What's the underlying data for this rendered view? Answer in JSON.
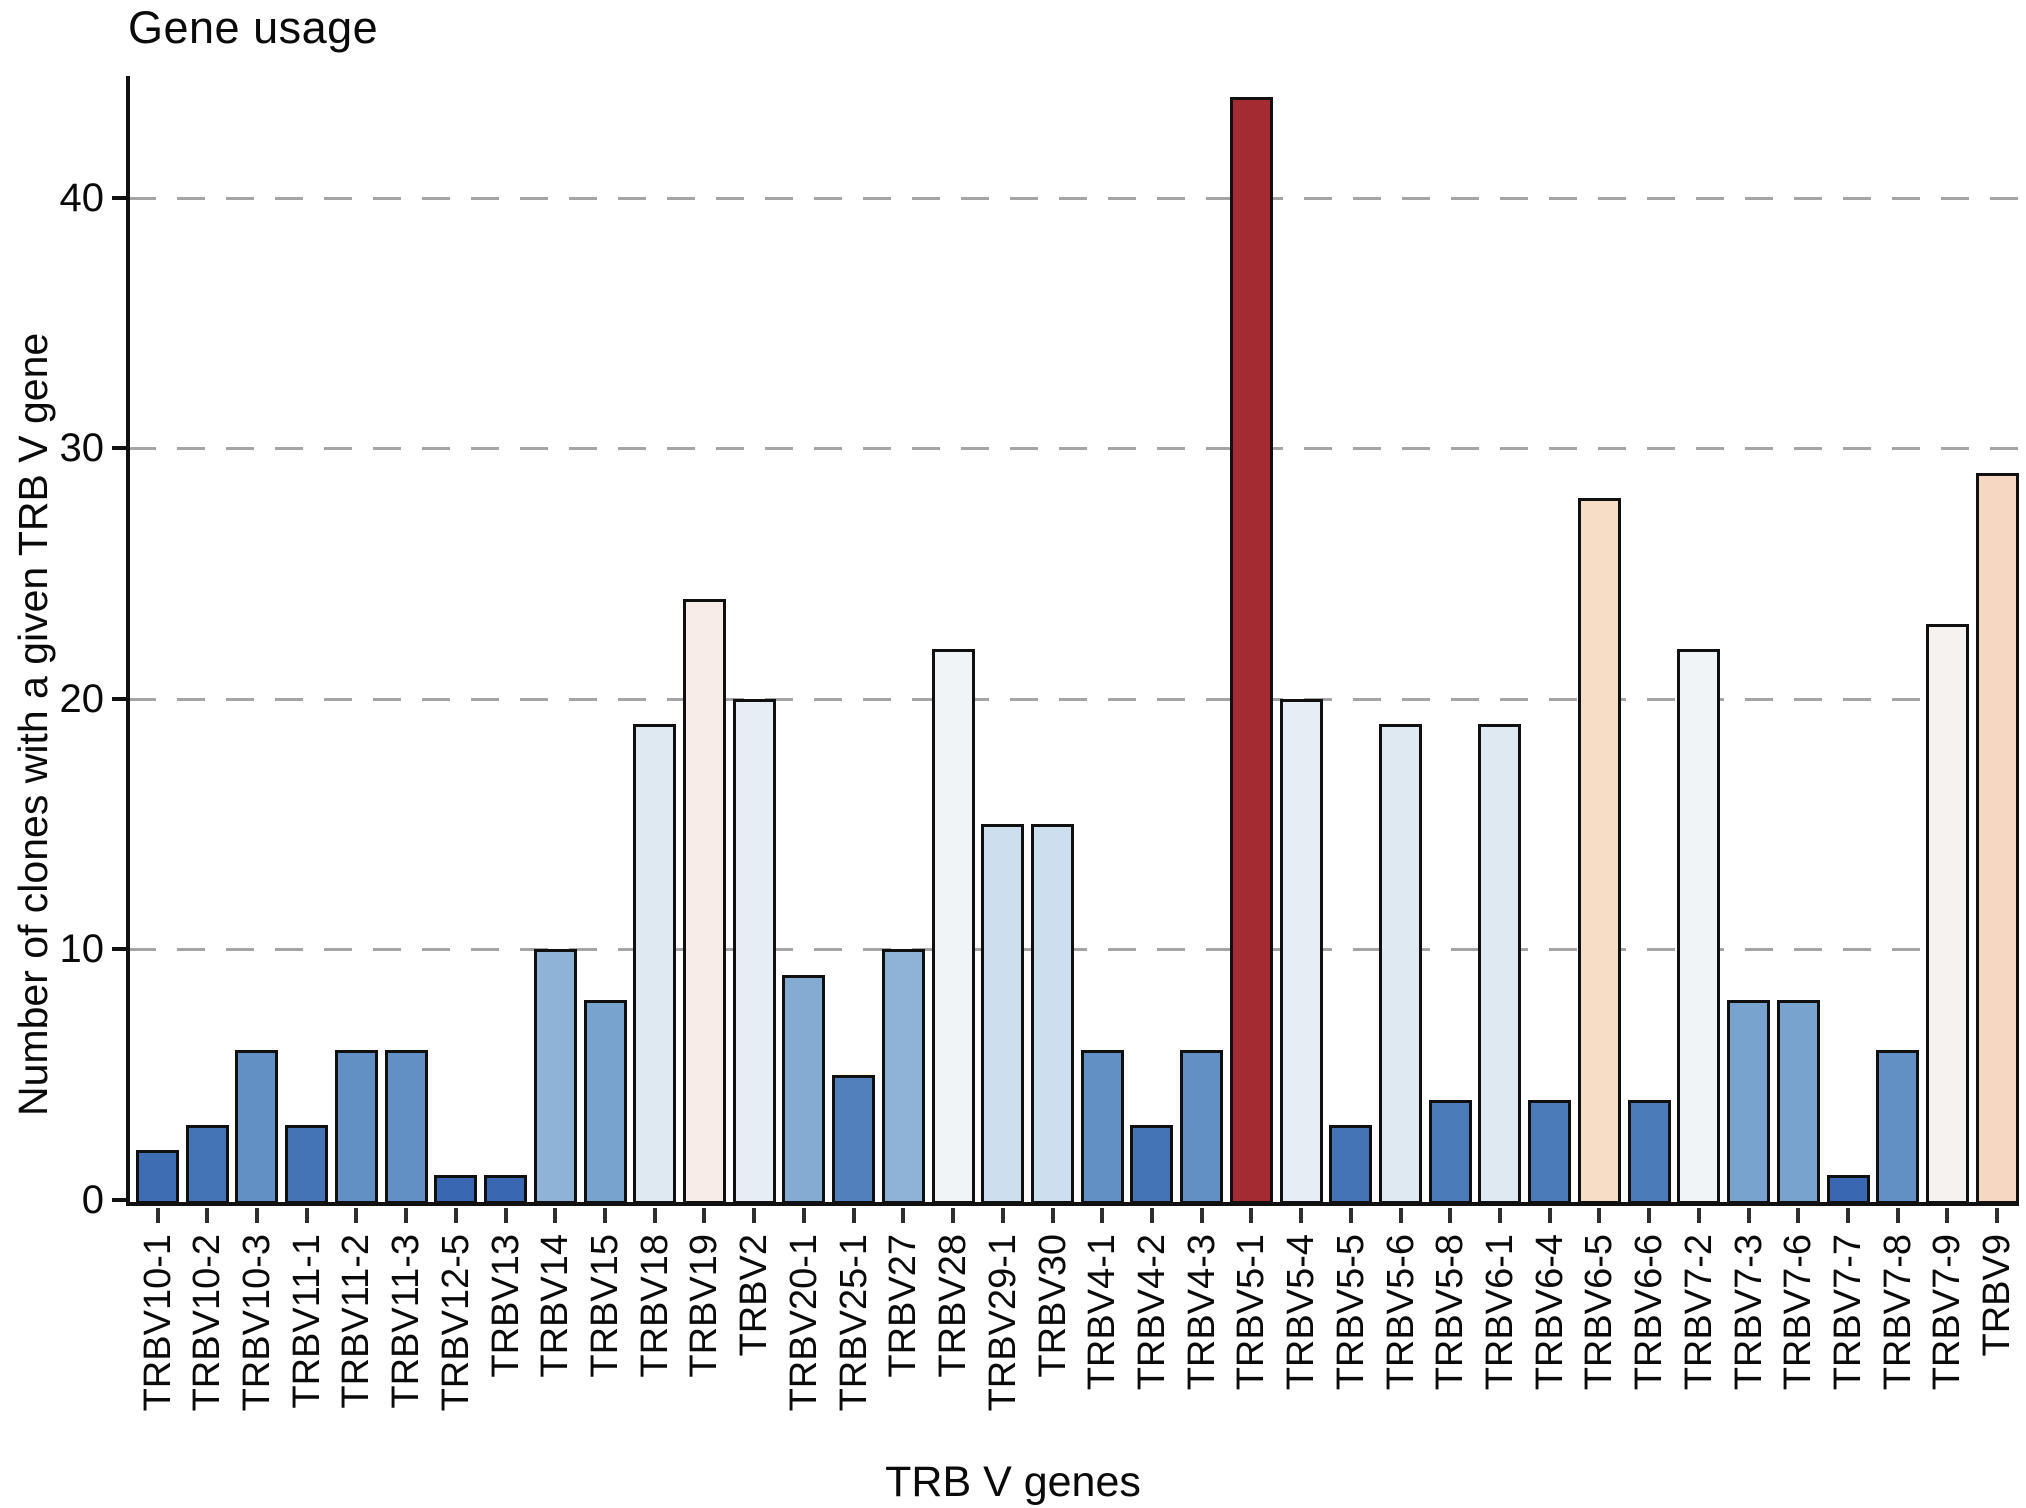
{
  "title": "Gene usage",
  "y_axis": {
    "label": "Number of clones with a given TRB V gene",
    "ticks": [
      0,
      10,
      20,
      30,
      40
    ]
  },
  "x_axis": {
    "label": "TRB V genes"
  },
  "colors": {
    "background": "#ffffff",
    "axis": "#111111",
    "grid": "#a5a5a5",
    "bar_stroke": "#101010",
    "max_bar_red": "#a52b33",
    "min_bar_blue": "#3a67b1"
  },
  "chart_data": {
    "type": "bar",
    "title": "Gene usage",
    "xlabel": "TRB V genes",
    "ylabel": "Number of clones with a given TRB V gene",
    "ylim": [
      0,
      44
    ],
    "yticks": [
      0,
      10,
      20,
      30,
      40
    ],
    "grid": "horizontal dashed at 10, 20, 30, 40",
    "legend_position": "none",
    "categories": [
      "TRBV10-1",
      "TRBV10-2",
      "TRBV10-3",
      "TRBV11-1",
      "TRBV11-2",
      "TRBV11-3",
      "TRBV12-5",
      "TRBV13",
      "TRBV14",
      "TRBV15",
      "TRBV18",
      "TRBV19",
      "TRBV2",
      "TRBV20-1",
      "TRBV25-1",
      "TRBV27",
      "TRBV28",
      "TRBV29-1",
      "TRBV30",
      "TRBV4-1",
      "TRBV4-2",
      "TRBV4-3",
      "TRBV5-1",
      "TRBV5-4",
      "TRBV5-5",
      "TRBV5-6",
      "TRBV5-8",
      "TRBV6-1",
      "TRBV6-4",
      "TRBV6-5",
      "TRBV6-6",
      "TRBV7-2",
      "TRBV7-3",
      "TRBV7-6",
      "TRBV7-7",
      "TRBV7-8",
      "TRBV7-9",
      "TRBV9"
    ],
    "values": [
      2,
      3,
      6,
      3,
      6,
      6,
      1,
      1,
      10,
      8,
      19,
      24,
      20,
      9,
      5,
      10,
      22,
      15,
      15,
      6,
      3,
      6,
      44,
      20,
      3,
      19,
      4,
      19,
      4,
      28,
      4,
      22,
      8,
      8,
      1,
      6,
      23,
      29
    ],
    "bar_colors": [
      "#3e6db3",
      "#4474b6",
      "#6290c5",
      "#4474b6",
      "#6290c5",
      "#6290c5",
      "#3a67b1",
      "#3a67b1",
      "#8fb3d7",
      "#78a3ce",
      "#dfe9f2",
      "#f8ece7",
      "#e6edf4",
      "#84abd2",
      "#5180bd",
      "#8fb3d7",
      "#f1f4f7",
      "#cddeee",
      "#cddeee",
      "#6290c5",
      "#4474b6",
      "#6290c5",
      "#a52b33",
      "#e6edf4",
      "#4474b6",
      "#dfe9f2",
      "#4c7bba",
      "#dfe9f2",
      "#4c7bba",
      "#f7dcc6",
      "#4c7bba",
      "#f1f4f7",
      "#78a3ce",
      "#78a3ce",
      "#3a67b1",
      "#6290c5",
      "#f5f2f0",
      "#f6d8c2"
    ]
  }
}
